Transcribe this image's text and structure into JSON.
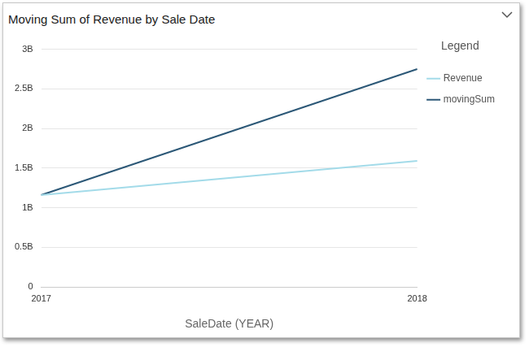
{
  "chart_data": {
    "type": "line",
    "title": "Moving Sum of Revenue by Sale Date",
    "x_label": "SaleDate (YEAR)",
    "legend_title": "Legend",
    "legend": "right",
    "categories": [
      "2017",
      "2018"
    ],
    "series": [
      {
        "name": "Revenue",
        "color": "#a3dbe9",
        "values": [
          1160000000,
          1590000000
        ]
      },
      {
        "name": "movingSum",
        "color": "#2c5877",
        "values": [
          1160000000,
          2750000000
        ]
      }
    ],
    "ylim": [
      0,
      3000000000
    ],
    "yticks": [
      0,
      {
        "value": 500000000,
        "label": "0.5B"
      },
      {
        "value": 1000000000,
        "label": "1B"
      },
      {
        "value": 1500000000,
        "label": "1.5B"
      },
      {
        "value": 2000000000,
        "label": "2B"
      },
      {
        "value": 2500000000,
        "label": "2.5B"
      },
      {
        "value": 3000000000,
        "label": "3B"
      }
    ],
    "grid": true
  }
}
